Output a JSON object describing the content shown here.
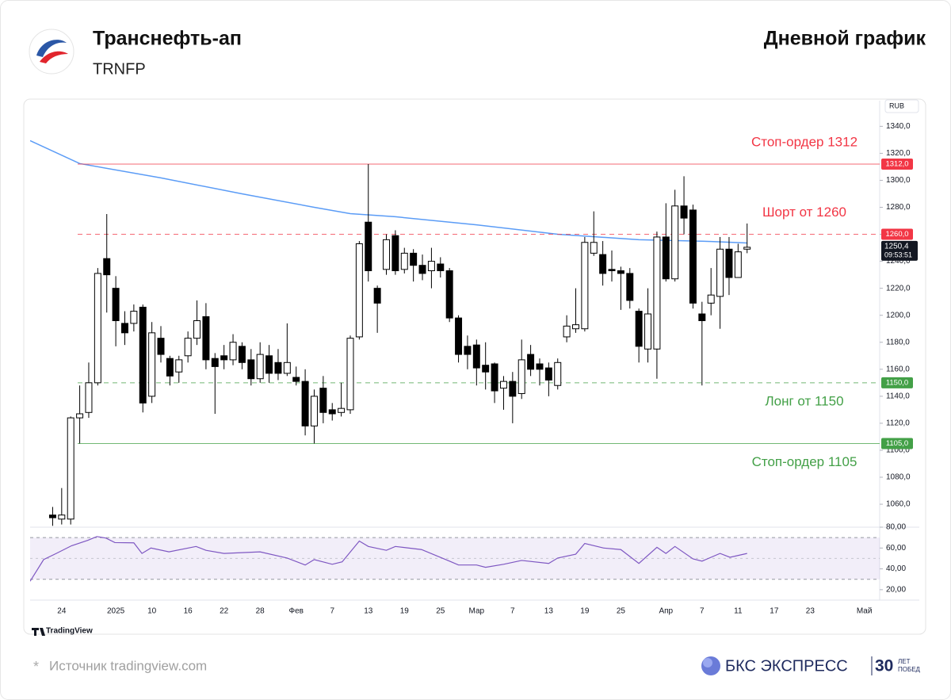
{
  "header": {
    "title": "Транснефть-ап",
    "ticker": "TRNFP",
    "chart_label": "Дневной график"
  },
  "chart_data": [
    {
      "type": "candlestick",
      "currency": "RUB",
      "xlim": [
        -2.5,
        91.7
      ],
      "ylim": [
        1043,
        1359
      ],
      "yticks": [
        {
          "value": 1060,
          "label": "1060,0"
        },
        {
          "value": 1080,
          "label": "1080,0"
        },
        {
          "value": 1100,
          "label": "1100,0"
        },
        {
          "value": 1120,
          "label": "1120,0"
        },
        {
          "value": 1140,
          "label": "1140,0"
        },
        {
          "value": 1160,
          "label": "1160,0"
        },
        {
          "value": 1180,
          "label": "1180,0"
        },
        {
          "value": 1200,
          "label": "1200,0"
        },
        {
          "value": 1220,
          "label": "1220,0"
        },
        {
          "value": 1240,
          "label": "1240,0"
        },
        {
          "value": 1260,
          "label": "1260,0"
        },
        {
          "value": 1280,
          "label": "1280,0"
        },
        {
          "value": 1300,
          "label": "1300,0"
        },
        {
          "value": 1320,
          "label": "1320,0"
        },
        {
          "value": 1340,
          "label": "1340,0"
        }
      ],
      "xticks": [
        {
          "value": 1,
          "label": "24"
        },
        {
          "value": 7,
          "label": "2025"
        },
        {
          "value": 11,
          "label": "10"
        },
        {
          "value": 15,
          "label": "16"
        },
        {
          "value": 19,
          "label": "22"
        },
        {
          "value": 23,
          "label": "28"
        },
        {
          "value": 27,
          "label": "Фев"
        },
        {
          "value": 31,
          "label": "7"
        },
        {
          "value": 35,
          "label": "13"
        },
        {
          "value": 39,
          "label": "19"
        },
        {
          "value": 43,
          "label": "25"
        },
        {
          "value": 47,
          "label": "Мар"
        },
        {
          "value": 51,
          "label": "7"
        },
        {
          "value": 55,
          "label": "13"
        },
        {
          "value": 59,
          "label": "19"
        },
        {
          "value": 63,
          "label": "25"
        },
        {
          "value": 68,
          "label": "Апр"
        },
        {
          "value": 72,
          "label": "7"
        },
        {
          "value": 76,
          "label": "11"
        },
        {
          "value": 80,
          "label": "17"
        },
        {
          "value": 84,
          "label": "23"
        },
        {
          "value": 90,
          "label": "Май"
        }
      ],
      "up_color": "#ffffff",
      "down_color": "#000000",
      "open": [
        1052,
        1049,
        1049,
        1124,
        1128,
        1150,
        1242,
        1220,
        1194,
        1194,
        1206,
        1140,
        1183,
        1168,
        1158,
        1170,
        1183,
        1199,
        1168,
        1170,
        1167,
        1177,
        1167,
        1153,
        1170,
        1165,
        1157,
        1154,
        1151,
        1118,
        1146,
        1130,
        1128,
        1130,
        1184,
        1269,
        1220,
        1234,
        1259,
        1234,
        1246,
        1237,
        1233,
        1238,
        1233,
        1198,
        1177,
        1178,
        1163,
        1164,
        1146,
        1151,
        1142,
        1171,
        1164,
        1161,
        1148,
        1184,
        1190,
        1190,
        1246,
        1245,
        1234,
        1233,
        1231,
        1203,
        1175,
        1175,
        1258,
        1227,
        1281,
        1278,
        1201,
        1209,
        1214,
        1249,
        1228,
        1249
      ],
      "high": [
        1058,
        1072,
        1125,
        1148,
        1165,
        1235,
        1275,
        1229,
        1203,
        1208,
        1208,
        1195,
        1192,
        1170,
        1170,
        1188,
        1211,
        1209,
        1172,
        1178,
        1186,
        1180,
        1175,
        1180,
        1178,
        1175,
        1194,
        1162,
        1160,
        1145,
        1155,
        1135,
        1150,
        1185,
        1255,
        1312,
        1222,
        1260,
        1263,
        1250,
        1249,
        1245,
        1250,
        1243,
        1235,
        1200,
        1185,
        1182,
        1180,
        1165,
        1155,
        1158,
        1182,
        1178,
        1168,
        1165,
        1168,
        1200,
        1220,
        1258,
        1277,
        1255,
        1248,
        1236,
        1235,
        1205,
        1220,
        1262,
        1283,
        1293,
        1303,
        1282,
        1210,
        1235,
        1258,
        1258,
        1253,
        1268
      ],
      "low": [
        1044,
        1045,
        1045,
        1105,
        1124,
        1148,
        1202,
        1177,
        1178,
        1188,
        1128,
        1135,
        1165,
        1148,
        1150,
        1165,
        1178,
        1160,
        1127,
        1160,
        1163,
        1160,
        1148,
        1150,
        1150,
        1152,
        1155,
        1148,
        1111,
        1105,
        1120,
        1122,
        1125,
        1127,
        1182,
        1225,
        1187,
        1230,
        1230,
        1231,
        1225,
        1226,
        1220,
        1228,
        1195,
        1165,
        1160,
        1148,
        1145,
        1135,
        1130,
        1120,
        1138,
        1155,
        1148,
        1140,
        1145,
        1180,
        1187,
        1188,
        1244,
        1222,
        1225,
        1204,
        1205,
        1165,
        1165,
        1153,
        1225,
        1225,
        1260,
        1205,
        1148,
        1200,
        1190,
        1215,
        1228,
        1246
      ],
      "close": [
        1050,
        1052,
        1124,
        1127,
        1150,
        1231,
        1230,
        1196,
        1187,
        1203,
        1135,
        1187,
        1171,
        1155,
        1167,
        1183,
        1196,
        1167,
        1162,
        1167,
        1180,
        1165,
        1153,
        1171,
        1157,
        1157,
        1165,
        1151,
        1118,
        1140,
        1128,
        1127,
        1131,
        1183,
        1253,
        1233,
        1209,
        1256,
        1233,
        1246,
        1237,
        1231,
        1240,
        1233,
        1198,
        1171,
        1171,
        1161,
        1158,
        1144,
        1151,
        1140,
        1167,
        1160,
        1160,
        1152,
        1165,
        1192,
        1193,
        1254,
        1254,
        1231,
        1233,
        1231,
        1211,
        1177,
        1201,
        1258,
        1227,
        1281,
        1272,
        1209,
        1196,
        1215,
        1249,
        1228,
        1247,
        1250.4
      ],
      "moving_average": {
        "color": "#5b9cf6",
        "x": [
          -2.5,
          3,
          12,
          21,
          29,
          33,
          38,
          47,
          56,
          65,
          73,
          77
        ],
        "values": [
          1329.4,
          1312.4,
          1301.8,
          1290,
          1280,
          1275.3,
          1273,
          1267,
          1260,
          1256,
          1254.7,
          1253.6
        ]
      },
      "levels": [
        {
          "value": 1312,
          "label": "1312,0",
          "text": "Стоп-ордер 1312",
          "color": "#f23645",
          "style": "solid",
          "text_position": "above"
        },
        {
          "value": 1260,
          "label": "1260,0",
          "text": "Шорт от 1260",
          "color": "#f23645",
          "style": "dashed",
          "text_position": "above"
        },
        {
          "value": 1150,
          "label": "1150,0",
          "text": "Лонг от 1150",
          "color": "#43a047",
          "style": "dashed",
          "text_position": "below"
        },
        {
          "value": 1105,
          "label": "1105,0",
          "text": "Стоп-ордер 1105",
          "color": "#43a047",
          "style": "solid",
          "text_position": "below"
        }
      ],
      "last_price": {
        "value": 1250.4,
        "label": "1250,4",
        "time": "09:53:51"
      }
    },
    {
      "type": "line",
      "color": "#7e57c2",
      "ylim": [
        10,
        80
      ],
      "yticks": [
        {
          "value": 20,
          "label": "20,00"
        },
        {
          "value": 40,
          "label": "40,00"
        },
        {
          "value": 60,
          "label": "60,00"
        },
        {
          "value": 80,
          "label": "80,00"
        }
      ],
      "bands": [
        30,
        70
      ],
      "midline": 50,
      "x": [
        -2.5,
        -1,
        0.4,
        2.1,
        3.9,
        4.9,
        5.9,
        6.9,
        9,
        9.9,
        10.9,
        12.9,
        15.9,
        17,
        19,
        23,
        26,
        28,
        29,
        31,
        32.1,
        34,
        35,
        37,
        38,
        40.9,
        44,
        45,
        47,
        48,
        50,
        52,
        55,
        56,
        58,
        59,
        61.1,
        63,
        65,
        67,
        68,
        69,
        71,
        72,
        74,
        75.1,
        77
      ],
      "values": [
        28.1,
        48.9,
        54.8,
        62.2,
        67.4,
        71,
        69.6,
        65.2,
        65,
        54.8,
        60,
        56.3,
        61.5,
        57.8,
        54.8,
        56.3,
        50.4,
        43.7,
        48.9,
        44.4,
        46.7,
        66.7,
        61.5,
        57.8,
        61.5,
        58.5,
        47.4,
        43.7,
        43.7,
        41.5,
        44.4,
        48.1,
        45.2,
        50.4,
        54.1,
        64.4,
        60,
        58.5,
        45.2,
        60.7,
        54.8,
        61.5,
        49.6,
        47.4,
        54.8,
        51.1,
        54.8
      ]
    }
  ],
  "footer": {
    "watermark": "TradingView",
    "source_mark": "*",
    "source": "Источник tradingview.com",
    "brand": "БКС ЭКСПРЕСС",
    "brand_years": "30",
    "brand_tagline_1": "ЛЕТ",
    "brand_tagline_2": "ПОБЕД"
  }
}
